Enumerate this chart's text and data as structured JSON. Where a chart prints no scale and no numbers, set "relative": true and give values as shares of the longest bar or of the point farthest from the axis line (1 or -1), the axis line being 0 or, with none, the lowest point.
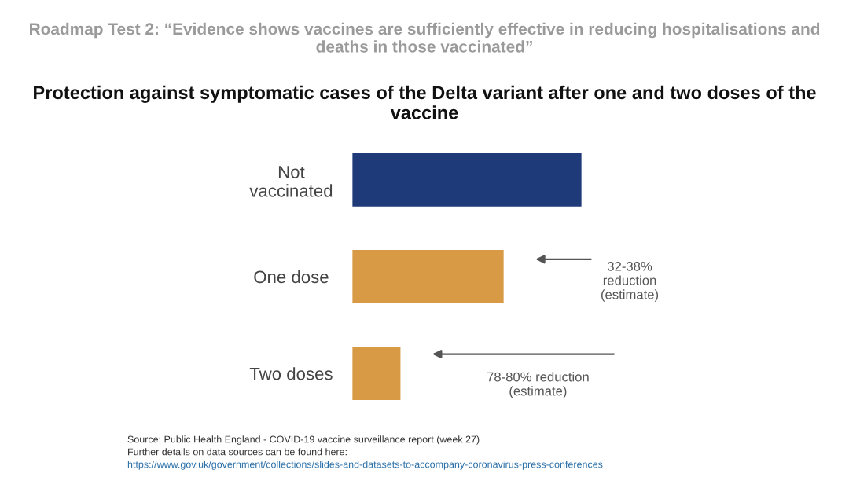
{
  "chart_data": {
    "type": "bar",
    "orientation": "horizontal",
    "relative": true,
    "subtitle": "Roadmap Test 2: “Evidence shows vaccines are sufficiently effective in reducing hospitalisations and deaths in those vaccinated”",
    "title": "Protection against symptomatic cases of the Delta variant after one and two doses of the vaccine",
    "categories": [
      "Not\nvaccinated",
      "One dose",
      "Two doses"
    ],
    "values": [
      1,
      0.66,
      0.21
    ],
    "colors": [
      "#1f3a78",
      "#d99a45",
      "#d99a45"
    ],
    "annotations": [
      "32-38%\nreduction\n(estimate)",
      "78-80% reduction\n(estimate)",
      "Source: Public Health England - COVID-19 vaccine surveillance report (week 27)",
      "Further details on data sources can be found here:",
      "https://www.gov.uk/government/collections/slides-and-datasets-to-accompany-coronavirus-press-conferences"
    ],
    "grid": false,
    "legend": false
  }
}
